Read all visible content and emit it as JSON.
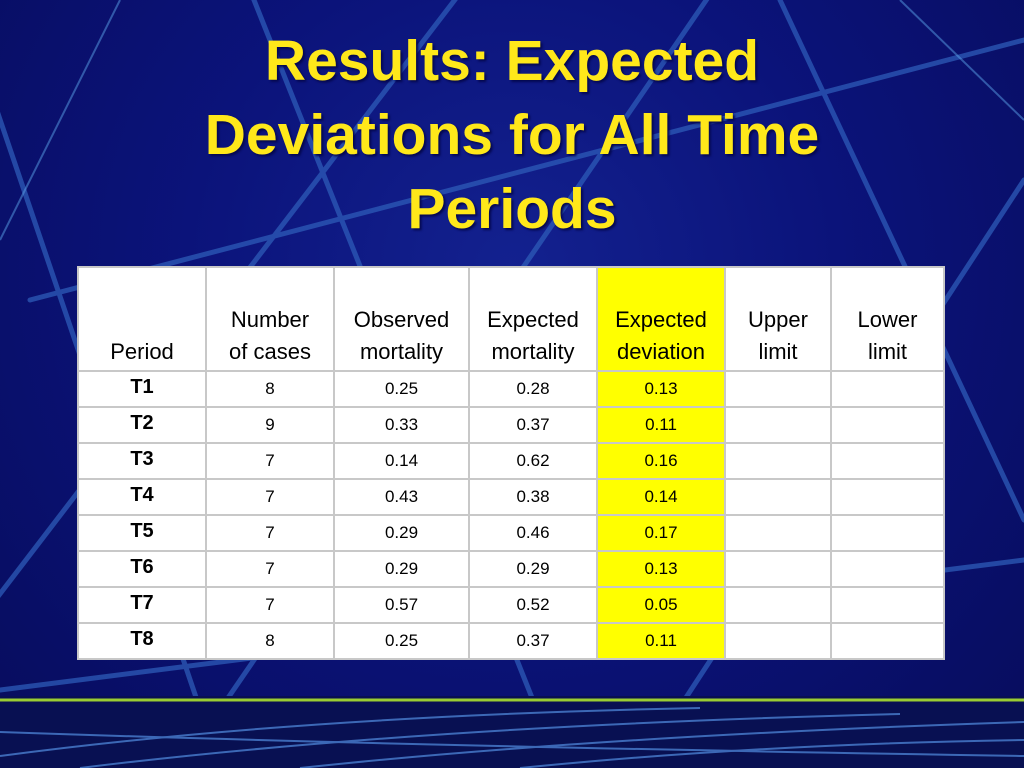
{
  "slide": {
    "title_lines": [
      "Results:  Expected",
      "Deviations for All Time",
      "Periods"
    ],
    "highlight_color": "#ffff00",
    "title_color": "#ffe81a",
    "background_color": "#0a0f6e"
  },
  "table": {
    "headers": [
      [
        "",
        "Period"
      ],
      [
        "Number",
        "of cases"
      ],
      [
        "Observed",
        "mortality"
      ],
      [
        "Expected",
        "mortality"
      ],
      [
        "Expected",
        "deviation"
      ],
      [
        "Upper",
        "limit"
      ],
      [
        "Lower",
        "limit"
      ]
    ],
    "highlight_column": 4,
    "rows": [
      [
        "T1",
        "8",
        "0.25",
        "0.28",
        "0.13",
        "",
        ""
      ],
      [
        "T2",
        "9",
        "0.33",
        "0.37",
        "0.11",
        "",
        ""
      ],
      [
        "T3",
        "7",
        "0.14",
        "0.62",
        "0.16",
        "",
        ""
      ],
      [
        "T4",
        "7",
        "0.43",
        "0.38",
        "0.14",
        "",
        ""
      ],
      [
        "T5",
        "7",
        "0.29",
        "0.46",
        "0.17",
        "",
        ""
      ],
      [
        "T6",
        "7",
        "0.29",
        "0.29",
        "0.13",
        "",
        ""
      ],
      [
        "T7",
        "7",
        "0.57",
        "0.52",
        "0.05",
        "",
        ""
      ],
      [
        "T8",
        "8",
        "0.25",
        "0.37",
        "0.11",
        "",
        ""
      ]
    ]
  }
}
